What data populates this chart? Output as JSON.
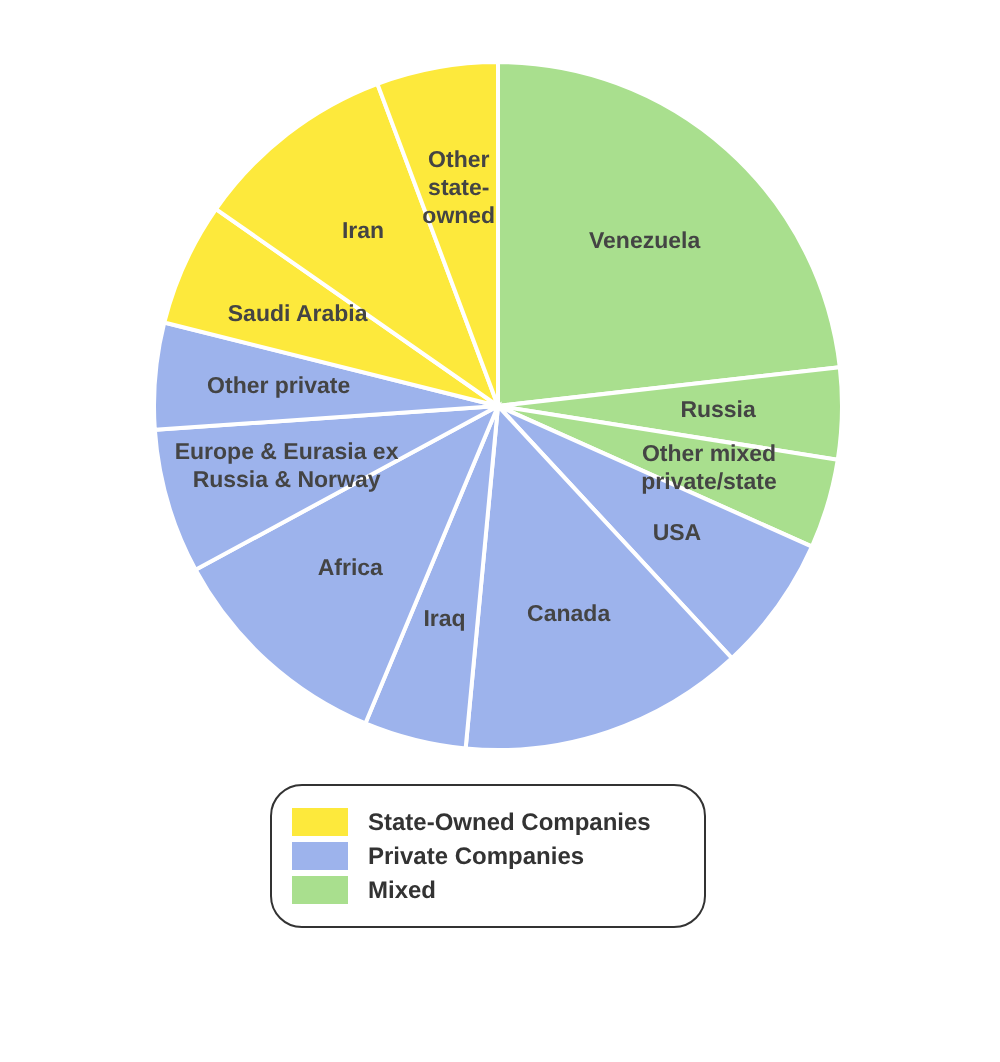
{
  "chart_data": {
    "type": "pie",
    "categories": [
      "Venezuela",
      "Russia",
      "Other mixed private/state",
      "USA",
      "Canada",
      "Iraq",
      "Africa",
      "Europe & Eurasia ex Russia & Norway",
      "Other private",
      "Saudi Arabia",
      "Iran",
      "Other state-owned"
    ],
    "values": [
      23.2,
      4.3,
      4.2,
      6.4,
      13.4,
      4.8,
      10.8,
      6.8,
      5.0,
      5.8,
      9.6,
      5.7
    ],
    "colors": [
      "#a9df8e",
      "#a9df8e",
      "#a9df8e",
      "#9db3ec",
      "#9db3ec",
      "#9db3ec",
      "#9db3ec",
      "#9db3ec",
      "#9db3ec",
      "#fde93c",
      "#fde93c",
      "#fde93c"
    ],
    "annotations": [
      "State-Owned Companies",
      "Private Companies",
      "Mixed"
    ]
  }
}
